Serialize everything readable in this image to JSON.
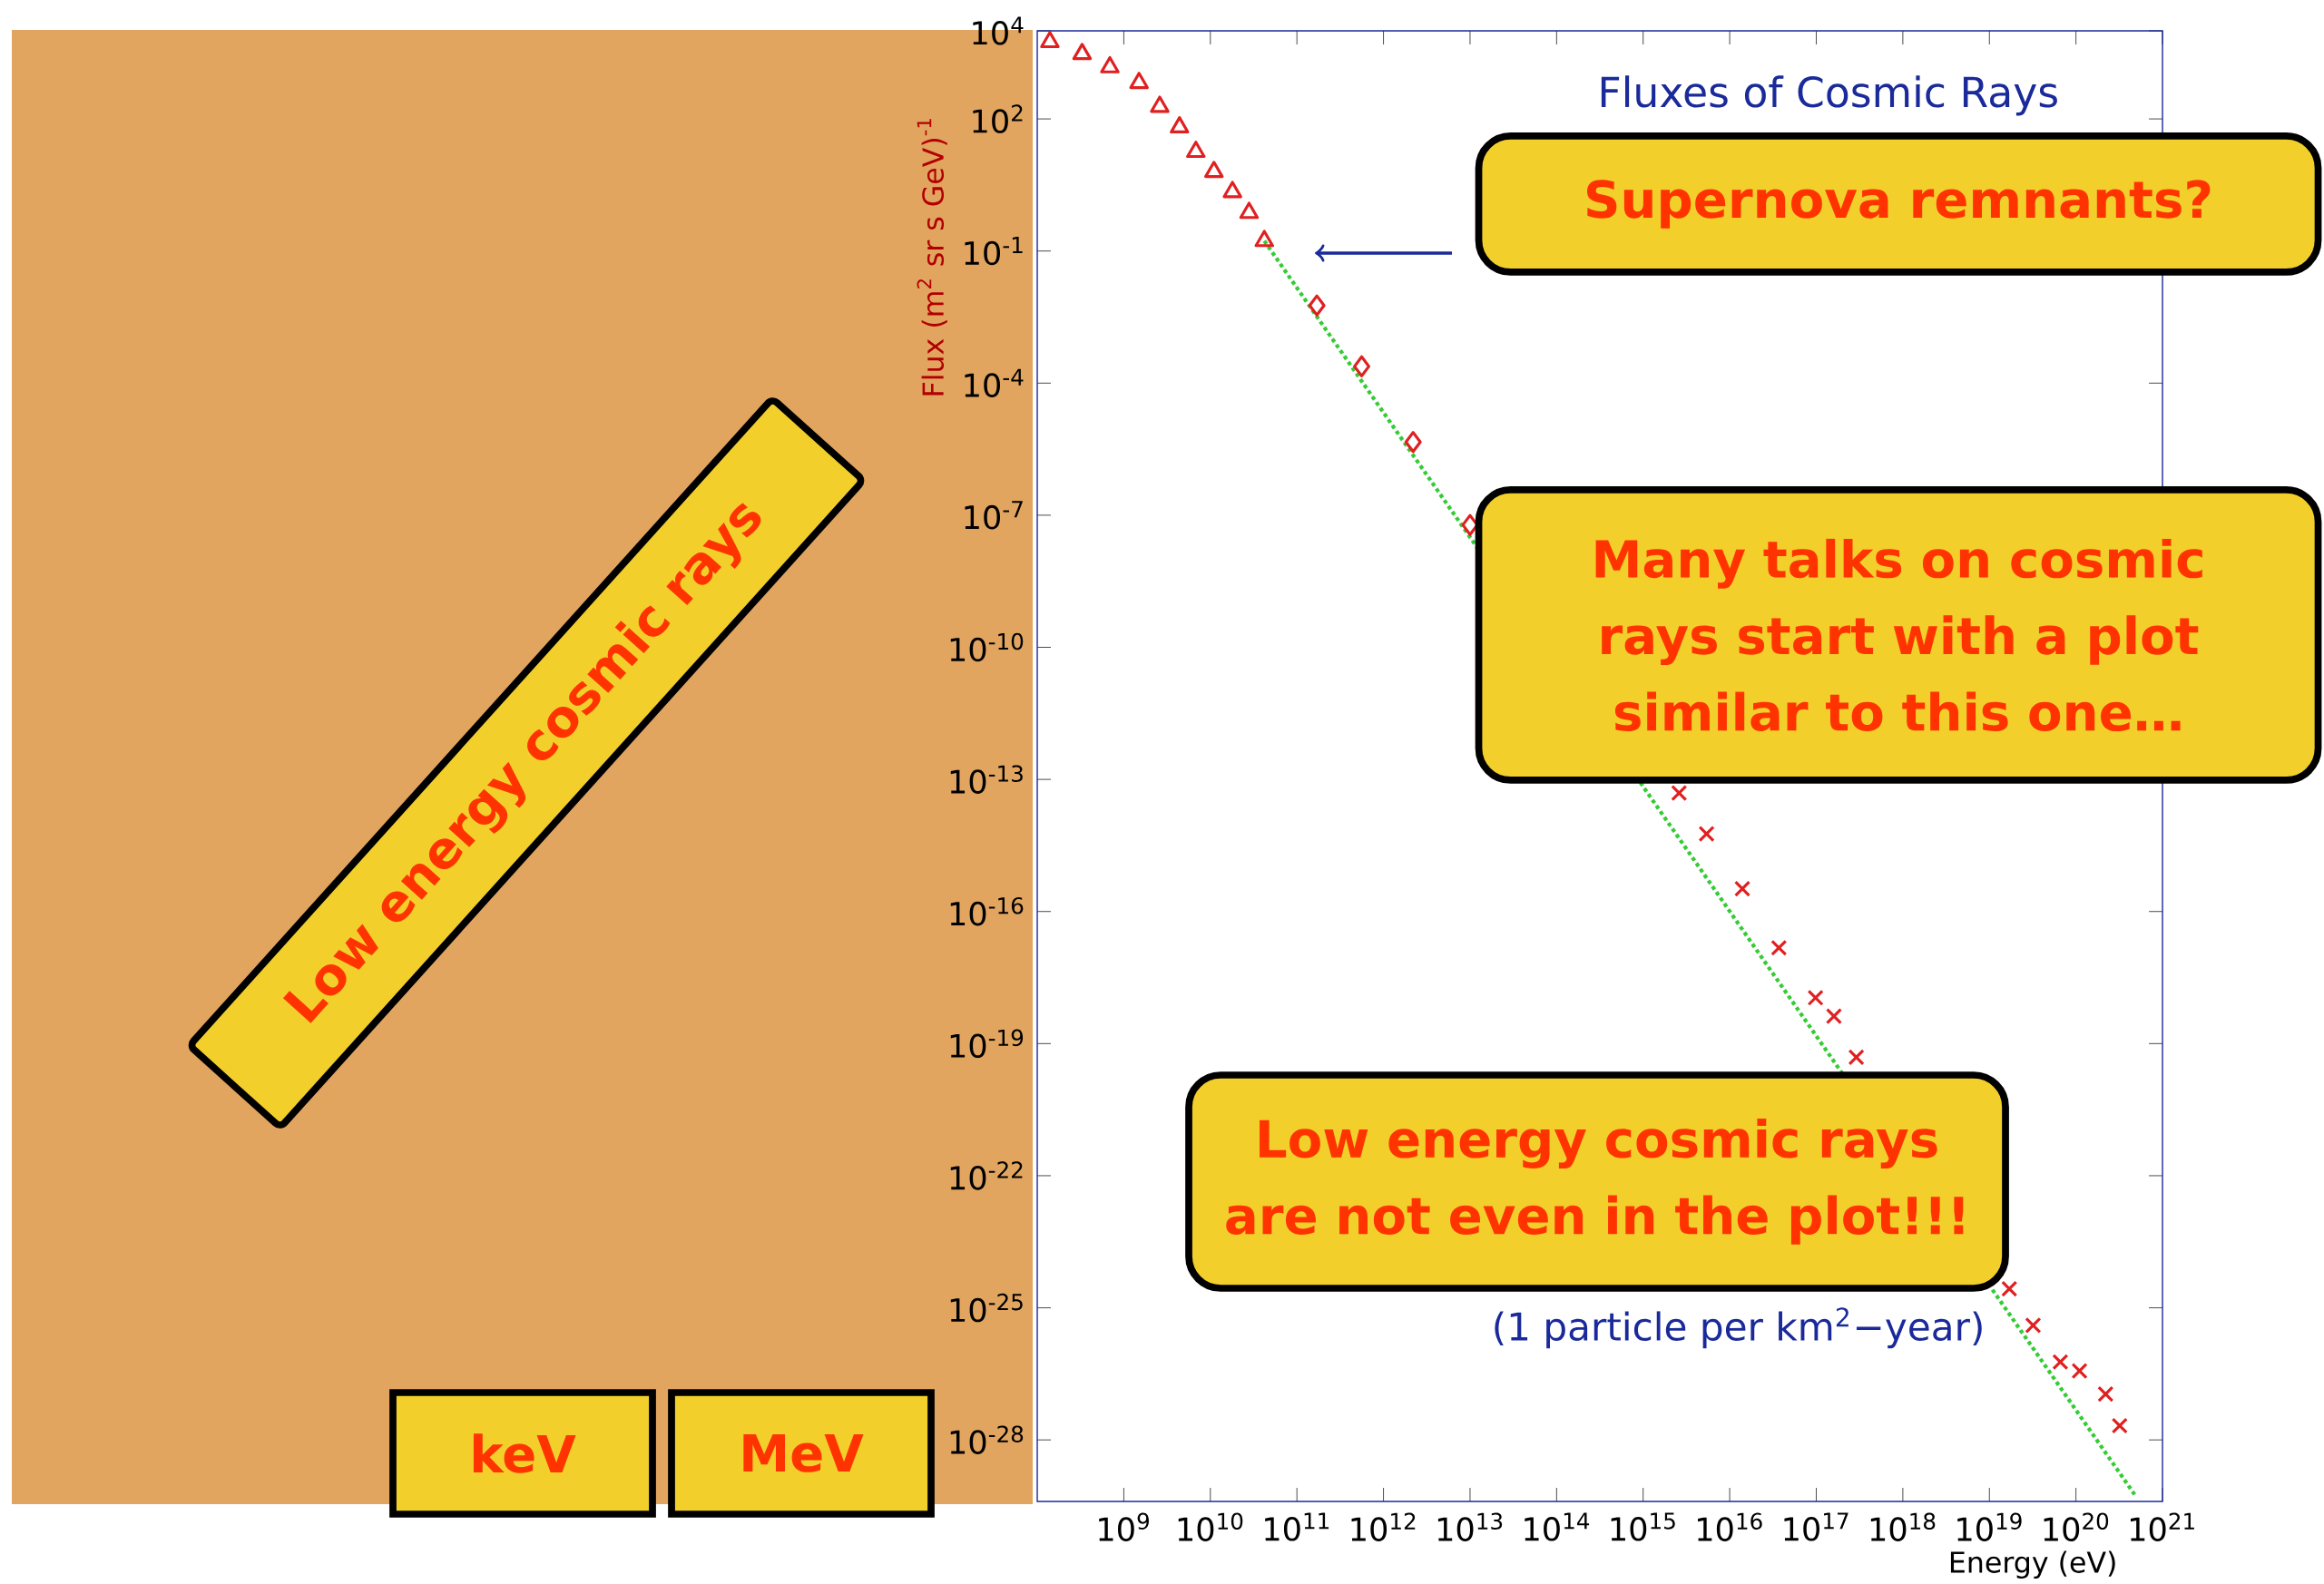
{
  "chart_data": {
    "type": "scatter",
    "title": "Fluxes of Cosmic Rays",
    "xlabel": "Energy (eV)",
    "ylabel": "Flux (m$^{2}$ sr s GeV)$^{-1}$",
    "log": "xy",
    "xlim": [
      100000000.0,
      1e+21
    ],
    "ylim": [
      4e-30,
      10000.0
    ],
    "xticks": [
      {
        "value": 1000000000.0,
        "label": "10$^{9}$"
      },
      {
        "value": 10000000000.0,
        "label": "10$^{10}$"
      },
      {
        "value": 100000000000.0,
        "label": "10$^{11}$"
      },
      {
        "value": 1000000000000.0,
        "label": "10$^{12}$"
      },
      {
        "value": 10000000000000.0,
        "label": "10$^{13}$"
      },
      {
        "value": 100000000000000.0,
        "label": "10$^{14}$"
      },
      {
        "value": 1000000000000000.0,
        "label": "10$^{15}$"
      },
      {
        "value": 1e+16,
        "label": "10$^{16}$"
      },
      {
        "value": 1e+17,
        "label": "10$^{17}$"
      },
      {
        "value": 1e+18,
        "label": "10$^{18}$"
      },
      {
        "value": 1e+19,
        "label": "10$^{19}$"
      },
      {
        "value": 1e+20,
        "label": "10$^{20}$"
      },
      {
        "value": 1e+21,
        "label": "10$^{21}$"
      }
    ],
    "yticks": [
      {
        "value": 10000.0,
        "label": "10$^{4}$"
      },
      {
        "value": 100.0,
        "label": "10$^{2}$"
      },
      {
        "value": 0.1,
        "label": "10$^{-1}$"
      },
      {
        "value": 0.0001,
        "label": "10$^{-4}$"
      },
      {
        "value": 1e-07,
        "label": "10$^{-7}$"
      },
      {
        "value": 1e-10,
        "label": "10$^{-10}$"
      },
      {
        "value": 1e-13,
        "label": "10$^{-13}$"
      },
      {
        "value": 1e-16,
        "label": "10$^{-16}$"
      },
      {
        "value": 1e-19,
        "label": "10$^{-19}$"
      },
      {
        "value": 1e-22,
        "label": "10$^{-22}$"
      },
      {
        "value": 1e-25,
        "label": "10$^{-25}$"
      },
      {
        "value": 1e-28,
        "label": "10$^{-28}$"
      }
    ],
    "series": [
      {
        "color": "#e02020",
        "marker": "triangle",
        "x": [
          140000000.0,
          330000000.0,
          690000000.0,
          1500000000.0,
          2600000000.0,
          4400000000.0,
          6800000000.0,
          11000000000.0,
          18000000000.0,
          28000000000.0,
          42000000000.0
        ],
        "values": [
          5600.0,
          3000.0,
          1500.0,
          660,
          190,
          65,
          18,
          6.3,
          2.2,
          0.74,
          0.17
        ]
      },
      {
        "color": "#e02020",
        "marker": "diamond",
        "x": [
          170000000000.0,
          560000000000.0,
          2200000000000.0,
          10000000000000.0
        ],
        "values": [
          0.0058,
          0.00024,
          4.6e-06,
          6e-08
        ]
      },
      {
        "color": "#e02020",
        "marker": "cross",
        "x": [
          2600000000000000.0,
          5400000000000000.0,
          1.4e+16,
          3.7e+16,
          9.8e+16,
          1.6e+17,
          2.9e+17,
          1.7e+19,
          3.2e+19,
          6.6e+19,
          1.1e+20,
          2.2e+20,
          3.2e+20
        ],
        "values": [
          4.9e-14,
          5.8e-15,
          3.3e-16,
          1.5e-17,
          1.1e-18,
          4.2e-19,
          4.9e-20,
          2.7e-25,
          4e-26,
          5.9e-27,
          3.7e-27,
          1.1e-27,
          2.1e-28
        ]
      },
      {
        "type": "line",
        "color": "#33cc33",
        "line_style": "dotted",
        "marker": "none",
        "x": [
          42000000000.0,
          5e+20
        ],
        "values": [
          0.17,
          5e-30
        ]
      }
    ],
    "annotations": [
      "Supernova remnants?",
      "Many talks on cosmic rays start with a plot similar to this one…",
      "Low energy cosmic rays are not even in the plot!!!",
      "(1 particle per km$^{2}$−year)",
      "Low energy cosmic rays",
      "keV",
      "MeV"
    ]
  }
}
